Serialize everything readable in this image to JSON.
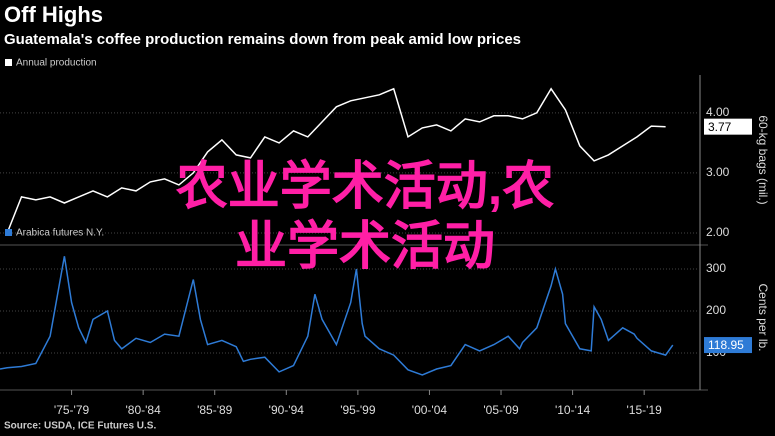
{
  "header": {
    "title": "Off Highs",
    "subtitle": "Guatemala's coffee production remains down from peak amid low prices"
  },
  "source": "Source: USDA, ICE Futures U.S.",
  "overlay_text": "农业学术活动,农业学术活动",
  "chart_data": [
    {
      "type": "line",
      "series": [
        {
          "name": "Annual production",
          "color": "#ffffff",
          "x": [
            1973,
            1974,
            1975,
            1976,
            1977,
            1978,
            1979,
            1980,
            1981,
            1982,
            1983,
            1984,
            1985,
            1986,
            1987,
            1988,
            1989,
            1990,
            1991,
            1992,
            1993,
            1994,
            1995,
            1996,
            1997,
            1998,
            1999,
            2000,
            2001,
            2002,
            2003,
            2004,
            2005,
            2006,
            2007,
            2008,
            2009,
            2010,
            2011,
            2012,
            2013,
            2014,
            2015,
            2016,
            2017,
            2018,
            2019
          ],
          "values": [
            2.0,
            2.6,
            2.55,
            2.6,
            2.5,
            2.6,
            2.7,
            2.6,
            2.75,
            2.7,
            2.85,
            2.9,
            2.8,
            3.0,
            3.35,
            3.55,
            3.3,
            3.25,
            3.6,
            3.5,
            3.7,
            3.6,
            3.85,
            4.1,
            4.2,
            4.25,
            4.3,
            4.4,
            3.6,
            3.75,
            3.8,
            3.7,
            3.9,
            3.85,
            3.95,
            3.95,
            3.9,
            4.0,
            4.4,
            4.05,
            3.45,
            3.2,
            3.3,
            3.45,
            3.6,
            3.78,
            3.77
          ],
          "value_labels": {
            "46": "3.77"
          }
        }
      ],
      "y_label": "60-kg bags (mil.)",
      "xlim": [
        1972.5,
        2021.4
      ],
      "ylim": [
        1.8,
        4.63
      ],
      "yticks": [
        {
          "value": 2,
          "label": "2.00"
        },
        {
          "value": 3,
          "label": "3.00"
        },
        {
          "value": 4,
          "label": "4.00"
        }
      ],
      "grid": true
    },
    {
      "type": "line",
      "series": [
        {
          "name": "Arabica futures N.Y.",
          "color": "#2e7bd6",
          "x": [
            1972.5,
            1973,
            1974,
            1975,
            1976,
            1977,
            1977.5,
            1978,
            1978.5,
            1979,
            1980,
            1980.5,
            1981,
            1982,
            1983,
            1984,
            1985,
            1986,
            1986.5,
            1987,
            1988,
            1989,
            1989.5,
            1990,
            1991,
            1992,
            1993,
            1994,
            1994.5,
            1995,
            1996,
            1997,
            1997.4,
            1997.8,
            1998,
            1999,
            2000,
            2001,
            2002,
            2003,
            2004,
            2005,
            2006,
            2007,
            2008,
            2008.8,
            2009,
            2010,
            2011,
            2011.3,
            2011.8,
            2012,
            2013,
            2013.8,
            2014,
            2014.5,
            2015,
            2016,
            2016.8,
            2017,
            2018,
            2019,
            2019.5
          ],
          "values": [
            62,
            65,
            68,
            75,
            140,
            330,
            220,
            160,
            125,
            180,
            200,
            130,
            110,
            135,
            125,
            145,
            140,
            275,
            180,
            120,
            130,
            115,
            80,
            85,
            90,
            55,
            70,
            140,
            240,
            180,
            120,
            220,
            300,
            170,
            140,
            110,
            95,
            60,
            48,
            62,
            70,
            120,
            105,
            120,
            140,
            110,
            125,
            160,
            260,
            300,
            240,
            170,
            110,
            105,
            210,
            180,
            130,
            160,
            145,
            135,
            105,
            95,
            118.95
          ],
          "value_labels": {
            "62": "118.95"
          }
        }
      ],
      "y_label": "Cents per lb.",
      "xlim": [
        1972.5,
        2021.4
      ],
      "ylim": [
        12,
        357
      ],
      "yticks": [
        100,
        200,
        300
      ],
      "xticks": [
        {
          "value": 1977.5,
          "label": "'75-'79"
        },
        {
          "value": 1982.5,
          "label": "'80-'84"
        },
        {
          "value": 1987.5,
          "label": "'85-'89"
        },
        {
          "value": 1992.5,
          "label": "'90-'94"
        },
        {
          "value": 1997.5,
          "label": "'95-'99"
        },
        {
          "value": 2002.5,
          "label": "'00-'04"
        },
        {
          "value": 2007.5,
          "label": "'05-'09"
        },
        {
          "value": 2012.5,
          "label": "'10-'14"
        },
        {
          "value": 2017.5,
          "label": "'15-'19"
        }
      ],
      "grid": true
    }
  ]
}
